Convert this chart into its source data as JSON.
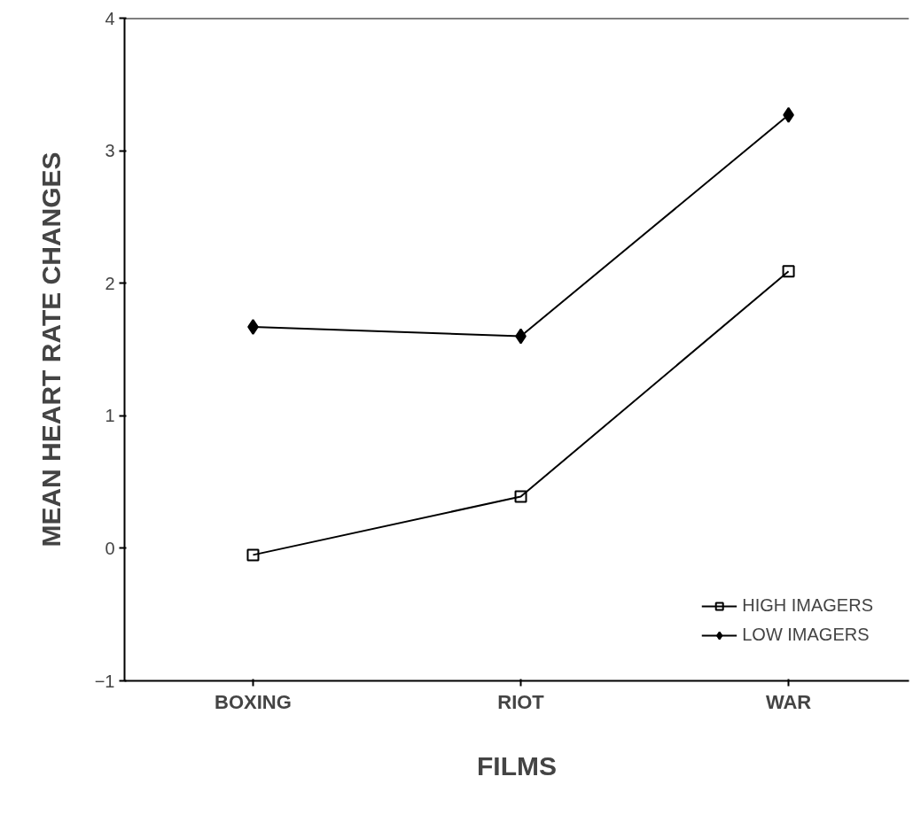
{
  "chart_data": {
    "type": "line",
    "xlabel": "FILMS",
    "ylabel": "MEAN HEART RATE CHANGES",
    "categories": [
      "BOXING",
      "RIOT",
      "WAR"
    ],
    "series": [
      {
        "name": "HIGH IMAGERS",
        "color": "#000000",
        "marker": "square",
        "values": [
          -0.05,
          0.39,
          2.09
        ]
      },
      {
        "name": "LOW IMAGERS",
        "color": "#000000",
        "marker": "diamond",
        "values": [
          1.67,
          1.6,
          3.27
        ]
      }
    ],
    "ylim": [
      -1,
      4
    ],
    "yticks": [
      -1,
      0,
      1,
      2,
      3,
      4
    ],
    "grid": false,
    "legend": "bottom right",
    "line_style": "solid"
  }
}
